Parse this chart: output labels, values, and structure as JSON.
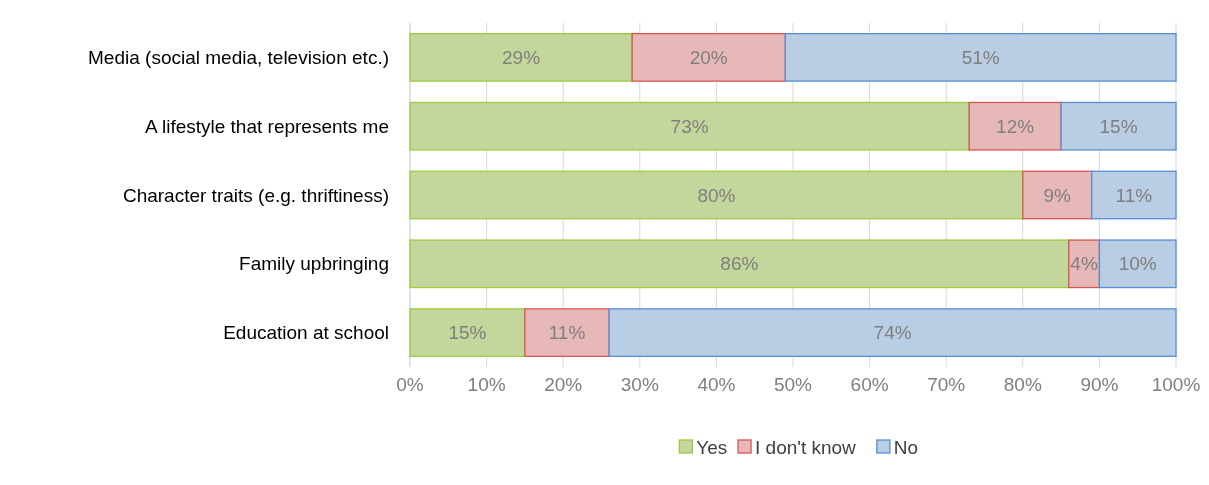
{
  "chart_data": {
    "type": "bar",
    "orientation": "horizontal",
    "stacked": true,
    "categories": [
      "Media (social media, television etc.)",
      "A lifestyle that represents me",
      "Character traits (e.g. thriftiness)",
      "Family upbringing",
      "Education at school"
    ],
    "series": [
      {
        "name": "Yes",
        "color": "#c3d69b",
        "values": [
          29,
          73,
          80,
          86,
          15
        ],
        "value_labels": [
          "29%",
          "73%",
          "80%",
          "86%",
          "15%"
        ]
      },
      {
        "name": "I don't know",
        "color": "#e6b9b8",
        "values": [
          20,
          12,
          9,
          4,
          11
        ],
        "value_labels": [
          "20%",
          "12%",
          "9%",
          "4%",
          "11%"
        ]
      },
      {
        "name": "No",
        "color": "#b9cde5",
        "values": [
          51,
          15,
          11,
          10,
          74
        ],
        "value_labels": [
          "51%",
          "15%",
          "11%",
          "10%",
          "74%"
        ]
      }
    ],
    "xlim": [
      0,
      100
    ],
    "xticks": [
      {
        "value": 0,
        "label": "0%"
      },
      {
        "value": 10,
        "label": "10%"
      },
      {
        "value": 20,
        "label": "20%"
      },
      {
        "value": 30,
        "label": "30%"
      },
      {
        "value": 40,
        "label": "40%"
      },
      {
        "value": 50,
        "label": "50%"
      },
      {
        "value": 60,
        "label": "60%"
      },
      {
        "value": 70,
        "label": "70%"
      },
      {
        "value": 80,
        "label": "80%"
      },
      {
        "value": 90,
        "label": "90%"
      },
      {
        "value": 100,
        "label": "100%"
      }
    ],
    "grid": "x",
    "legend": "bottom"
  }
}
